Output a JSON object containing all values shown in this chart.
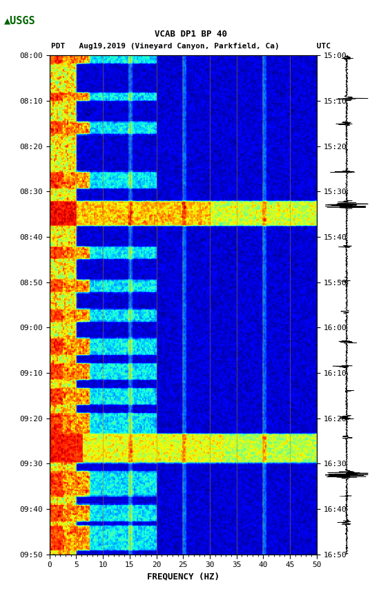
{
  "title_line1": "VCAB DP1 BP 40",
  "title_line2": "PDT   Aug19,2019 (Vineyard Canyon, Parkfield, Ca)        UTC",
  "xlabel": "FREQUENCY (HZ)",
  "freq_min": 0,
  "freq_max": 50,
  "time_start_pdt": "08:00",
  "time_end_pdt": "09:50",
  "time_start_utc": "15:00",
  "time_end_utc": "16:50",
  "pdt_ticks": [
    "08:00",
    "08:10",
    "08:20",
    "08:30",
    "08:40",
    "08:50",
    "09:00",
    "09:10",
    "09:20",
    "09:30",
    "09:40",
    "09:50"
  ],
  "utc_ticks": [
    "15:00",
    "15:10",
    "15:20",
    "15:30",
    "15:40",
    "15:50",
    "16:00",
    "16:10",
    "16:20",
    "16:30",
    "16:40",
    "16:50"
  ],
  "freq_ticks": [
    0,
    5,
    10,
    15,
    20,
    25,
    30,
    35,
    40,
    45,
    50
  ],
  "background_color": "#ffffff",
  "spectrogram_colormap": "jet",
  "n_freq": 200,
  "n_time": 600,
  "seed": 42
}
